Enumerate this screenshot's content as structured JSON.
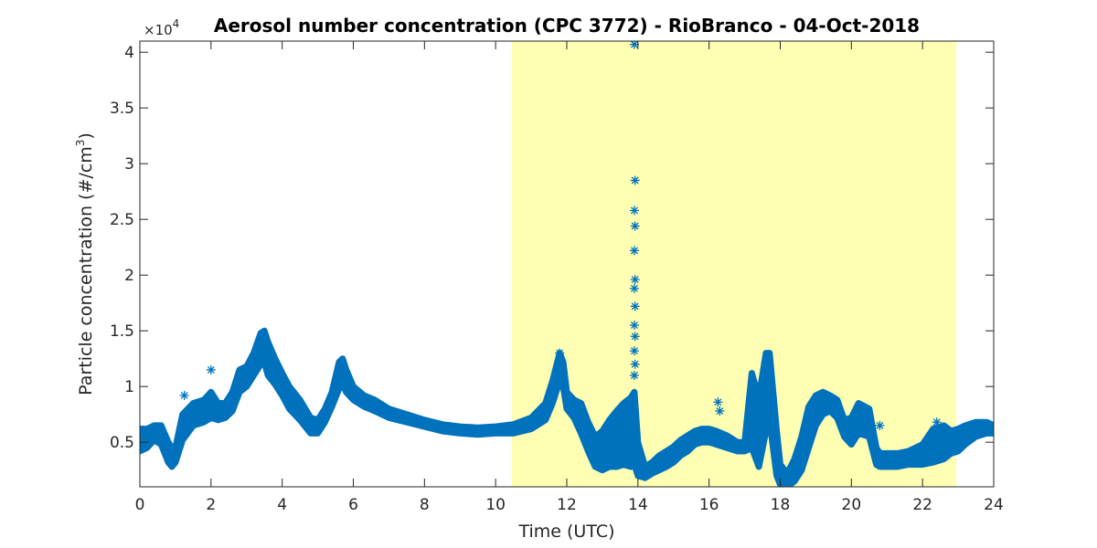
{
  "chart_data": {
    "type": "scatter",
    "title": "Aerosol number concentration (CPC 3772) - RioBranco - 04-Oct-2018",
    "xlabel": "Time (UTC)",
    "ylabel_main": "Particle concentration (#/cm",
    "ylabel_sup": "3",
    "ylabel_end": ")",
    "y_multiplier": {
      "base": "×10",
      "exponent": "4"
    },
    "xlim": [
      0,
      24
    ],
    "ylim": [
      0.1,
      4.1
    ],
    "x_ticks": [
      0,
      2,
      4,
      6,
      8,
      10,
      12,
      14,
      16,
      18,
      20,
      22,
      24
    ],
    "x_tick_labels": [
      "0",
      "2",
      "4",
      "6",
      "8",
      "10",
      "12",
      "14",
      "16",
      "18",
      "20",
      "22",
      "24"
    ],
    "y_ticks": [
      0.5,
      1,
      1.5,
      2,
      2.5,
      3,
      3.5,
      4
    ],
    "y_tick_labels": [
      "0.5",
      "1",
      "1.5",
      "2",
      "2.5",
      "3",
      "3.5",
      "4"
    ],
    "grid": false,
    "highlight_band": {
      "x_start": 10.45,
      "x_end": 22.95,
      "color": "#ffffb3"
    },
    "marker": "asterisk",
    "series_color": "#0072bd",
    "band_series": {
      "x": [
        0,
        0.2,
        0.4,
        0.6,
        0.8,
        0.9,
        1.0,
        1.2,
        1.5,
        1.8,
        2.0,
        2.2,
        2.4,
        2.6,
        2.8,
        3.0,
        3.2,
        3.4,
        3.5,
        3.6,
        3.8,
        4.0,
        4.2,
        4.5,
        4.8,
        5.0,
        5.2,
        5.4,
        5.6,
        5.7,
        5.8,
        6.0,
        6.3,
        6.6,
        7.0,
        7.5,
        8.0,
        8.5,
        9.0,
        9.5,
        10.0,
        10.5,
        11.0,
        11.4,
        11.6,
        11.8,
        11.9,
        12.0,
        12.2,
        12.4,
        12.6,
        12.8,
        13.0,
        13.2,
        13.4,
        13.6,
        13.8,
        13.9,
        14.0,
        14.2,
        14.4,
        14.6,
        14.8,
        15.0,
        15.2,
        15.4,
        15.6,
        15.8,
        16.0,
        16.2,
        16.5,
        16.8,
        17.0,
        17.2,
        17.4,
        17.6,
        17.7,
        17.9,
        18.0,
        18.2,
        18.4,
        18.6,
        18.8,
        19.0,
        19.2,
        19.4,
        19.6,
        19.8,
        20.0,
        20.2,
        20.5,
        20.7,
        20.8,
        21.0,
        21.3,
        21.6,
        22.0,
        22.3,
        22.6,
        22.8,
        23.0,
        23.2,
        23.5,
        23.8,
        24.0
      ],
      "low": [
        0.42,
        0.45,
        0.52,
        0.48,
        0.32,
        0.28,
        0.32,
        0.52,
        0.65,
        0.68,
        0.72,
        0.7,
        0.72,
        0.78,
        0.95,
        1.0,
        1.1,
        1.2,
        1.22,
        1.1,
        1.02,
        0.92,
        0.8,
        0.7,
        0.58,
        0.58,
        0.68,
        0.82,
        0.98,
        1.02,
        0.95,
        0.88,
        0.82,
        0.78,
        0.72,
        0.68,
        0.64,
        0.6,
        0.58,
        0.57,
        0.58,
        0.58,
        0.62,
        0.7,
        0.85,
        1.05,
        1.0,
        0.8,
        0.72,
        0.58,
        0.42,
        0.28,
        0.25,
        0.28,
        0.28,
        0.3,
        0.28,
        0.3,
        0.2,
        0.18,
        0.22,
        0.25,
        0.28,
        0.32,
        0.38,
        0.42,
        0.48,
        0.5,
        0.5,
        0.48,
        0.45,
        0.42,
        0.42,
        0.45,
        0.28,
        0.6,
        0.7,
        0.2,
        0.12,
        0.1,
        0.15,
        0.25,
        0.45,
        0.65,
        0.75,
        0.78,
        0.72,
        0.55,
        0.48,
        0.58,
        0.55,
        0.3,
        0.28,
        0.28,
        0.28,
        0.3,
        0.3,
        0.32,
        0.35,
        0.4,
        0.42,
        0.48,
        0.55,
        0.58,
        0.58
      ],
      "high": [
        0.62,
        0.62,
        0.65,
        0.65,
        0.5,
        0.45,
        0.45,
        0.75,
        0.85,
        0.88,
        0.95,
        0.85,
        0.85,
        0.95,
        1.15,
        1.18,
        1.3,
        1.48,
        1.5,
        1.4,
        1.25,
        1.12,
        1.0,
        0.88,
        0.72,
        0.7,
        0.8,
        0.95,
        1.22,
        1.25,
        1.15,
        1.0,
        0.92,
        0.88,
        0.8,
        0.75,
        0.7,
        0.66,
        0.64,
        0.63,
        0.64,
        0.66,
        0.72,
        0.85,
        1.05,
        1.3,
        1.22,
        0.95,
        0.88,
        0.85,
        0.68,
        0.55,
        0.6,
        0.7,
        0.78,
        0.85,
        0.9,
        0.95,
        0.5,
        0.28,
        0.32,
        0.38,
        0.42,
        0.46,
        0.52,
        0.56,
        0.6,
        0.62,
        0.62,
        0.6,
        0.56,
        0.5,
        0.5,
        1.12,
        0.9,
        1.3,
        1.3,
        0.6,
        0.3,
        0.22,
        0.35,
        0.55,
        0.82,
        0.92,
        0.95,
        0.92,
        0.88,
        0.7,
        0.72,
        0.85,
        0.8,
        0.45,
        0.4,
        0.4,
        0.4,
        0.42,
        0.48,
        0.62,
        0.65,
        0.6,
        0.62,
        0.65,
        0.68,
        0.68,
        0.65
      ]
    },
    "outliers": [
      {
        "x": 1.25,
        "y": 0.92
      },
      {
        "x": 2.0,
        "y": 1.15
      },
      {
        "x": 11.8,
        "y": 1.3
      },
      {
        "x": 13.9,
        "y": 4.07
      },
      {
        "x": 13.92,
        "y": 2.85
      },
      {
        "x": 13.9,
        "y": 2.58
      },
      {
        "x": 13.92,
        "y": 2.44
      },
      {
        "x": 13.9,
        "y": 2.22
      },
      {
        "x": 13.92,
        "y": 1.96
      },
      {
        "x": 13.9,
        "y": 1.88
      },
      {
        "x": 13.92,
        "y": 1.72
      },
      {
        "x": 13.9,
        "y": 1.55
      },
      {
        "x": 13.92,
        "y": 1.45
      },
      {
        "x": 13.9,
        "y": 1.32
      },
      {
        "x": 13.92,
        "y": 1.2
      },
      {
        "x": 13.9,
        "y": 1.1
      },
      {
        "x": 16.25,
        "y": 0.86
      },
      {
        "x": 16.3,
        "y": 0.78
      },
      {
        "x": 22.4,
        "y": 0.68
      },
      {
        "x": 20.8,
        "y": 0.65
      }
    ]
  }
}
